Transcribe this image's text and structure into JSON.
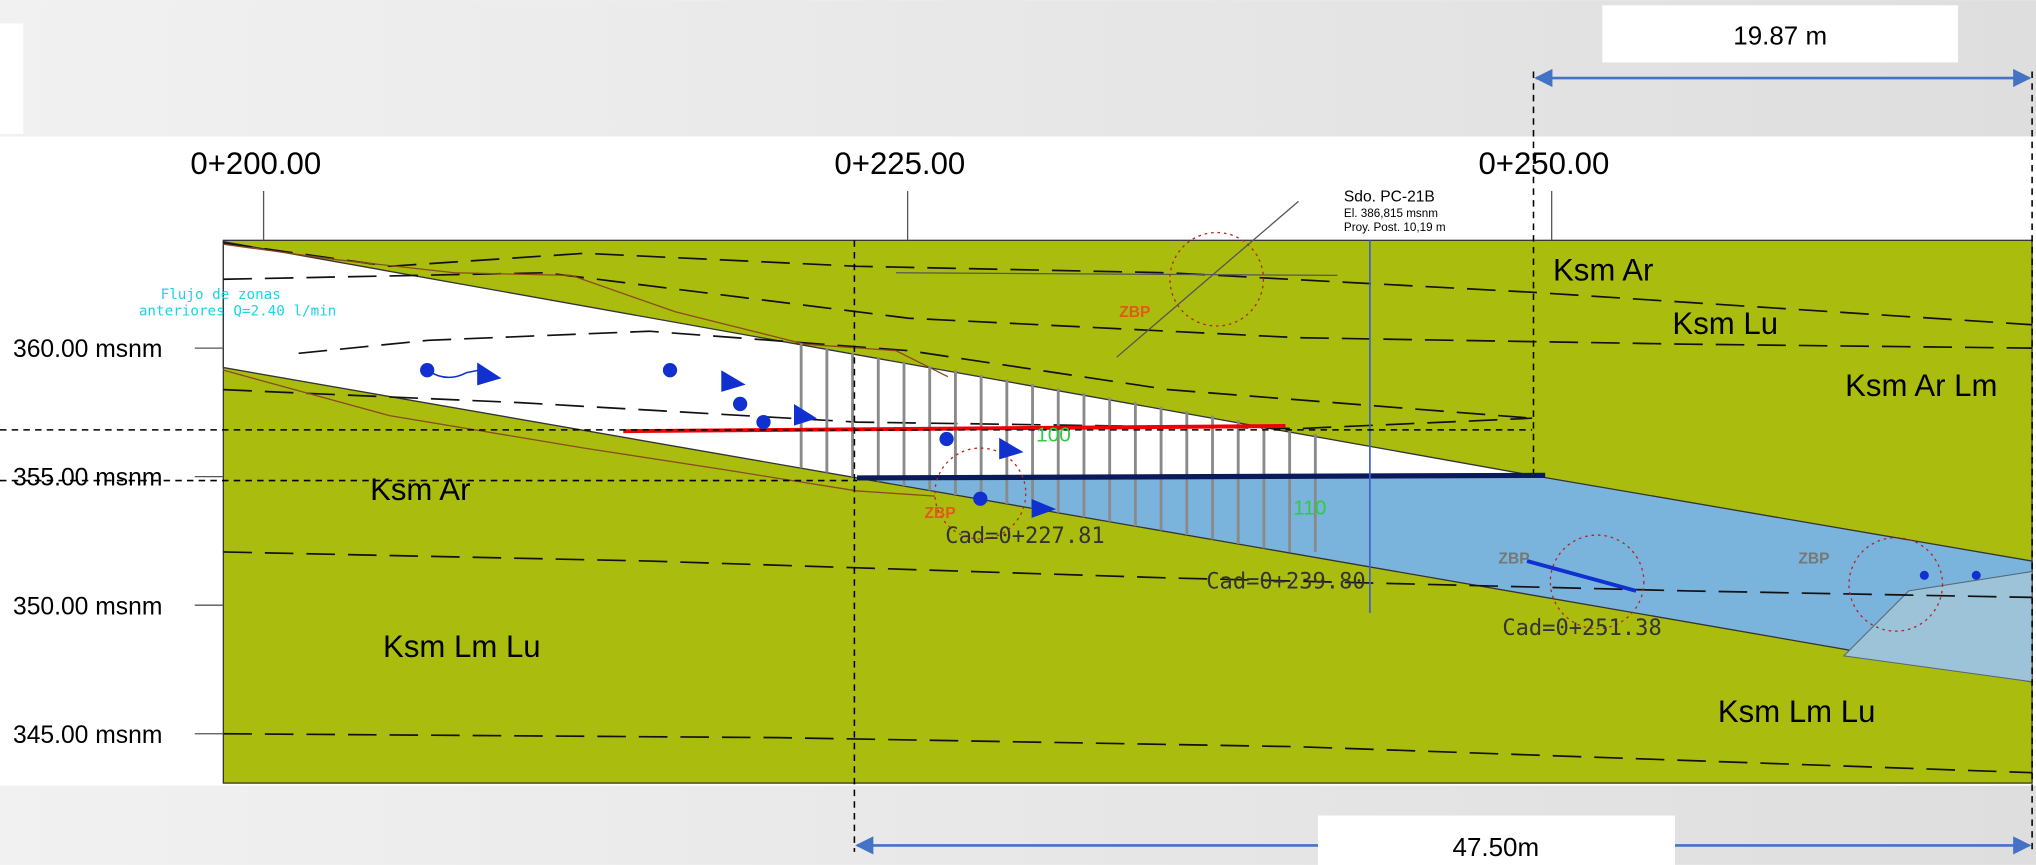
{
  "dimensions": {
    "top": "19.87 m",
    "bottom": "47.50m"
  },
  "stations": [
    "0+200.00",
    "0+225.00",
    "0+250.00"
  ],
  "elevations": [
    "360.00 msnm",
    "355.00 msnm",
    "350.00 msnm",
    "345.00 msnm"
  ],
  "borehole": {
    "name": "Sdo. PC-21B",
    "elevation": "El. 386,815 msnm",
    "projection": "Proy. Post. 10,19 m"
  },
  "flow_note": [
    "Flujo de zonas",
    "anteriores Q=2.40 l/min"
  ],
  "units": [
    "Ksm Ar",
    "Ksm Lu",
    "Ksm Ar Lm",
    "Ksm Ar",
    "Ksm Lm Lu",
    "Ksm Lm Lu"
  ],
  "zbp_labels": [
    "ZBP",
    "ZBP",
    "ZBP",
    "ZBP"
  ],
  "contours": [
    "100",
    "110"
  ],
  "chainages": [
    "Cad=0+227.81",
    "Cad=0+239.80",
    "Cad=0+251.38"
  ]
}
